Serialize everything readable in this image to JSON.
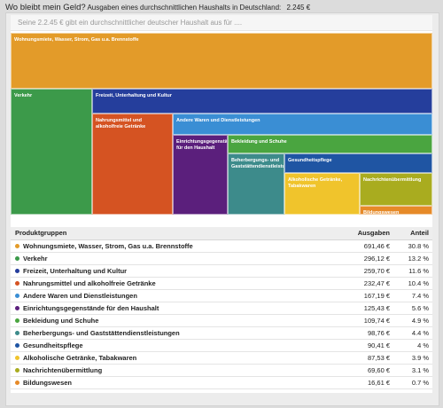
{
  "header": {
    "title": "Wo bleibt mein Geld?",
    "description": "Ausgaben eines durchschnittlichen Haushalts in Deutschland:",
    "total": "2.245 €"
  },
  "subtitle": "Seine 2.2.45 € gibt ein durchschnittlicher deutscher Haushalt aus für ....",
  "table": {
    "col_group": "Produktgruppen",
    "col_amount": "Ausgaben",
    "col_share": "Anteil"
  },
  "chart_data": {
    "type": "treemap",
    "unit": "€",
    "total": 2245,
    "categories": [
      {
        "label": "Wohnungsmiete, Wasser, Strom, Gas u.a. Brennstoffe",
        "tile_label": "Wohnungsmiete, Wasser, Strom, Gas u.a. Brennstoffe",
        "value": 691.46,
        "value_text": "691,46 €",
        "share_text": "30.8 %",
        "color": "#e39b29"
      },
      {
        "label": "Verkehr",
        "tile_label": "Verkehr",
        "value": 296.12,
        "value_text": "296,12 €",
        "share_text": "13.2 %",
        "color": "#3c9a4a"
      },
      {
        "label": "Freizeit, Unterhaltung und Kultur",
        "tile_label": "Freizeit, Unterhaltung und Kultur",
        "value": 259.7,
        "value_text": "259,70 €",
        "share_text": "11.6 %",
        "color": "#253e9c"
      },
      {
        "label": "Nahrungsmittel und alkoholfreie Getränke",
        "tile_label": "Nahrungsmittel und alkoholfreie Getränke",
        "value": 232.47,
        "value_text": "232,47 €",
        "share_text": "10.4 %",
        "color": "#d55322"
      },
      {
        "label": "Andere Waren und Dienstleistungen",
        "tile_label": "Andere Waren und Dienstleistungen",
        "value": 167.19,
        "value_text": "167,19 €",
        "share_text": "7.4 %",
        "color": "#3a8ed4"
      },
      {
        "label": "Einrichtungsgegenstände für den Haushalt",
        "tile_label": "Einrichtungsgegenstände für den Haushalt",
        "value": 125.43,
        "value_text": "125,43 €",
        "share_text": "5.6 %",
        "color": "#5b1f7c"
      },
      {
        "label": "Bekleidung und Schuhe",
        "tile_label": "Bekleidung und Schuhe",
        "value": 109.74,
        "value_text": "109,74 €",
        "share_text": "4.9 %",
        "color": "#4aa540"
      },
      {
        "label": "Beherbergungs- und Gaststättendienstleistungen",
        "tile_label": "Beherbergungs- und Gaststättendienstleistungen",
        "value": 98.76,
        "value_text": "98,76 €",
        "share_text": "4.4 %",
        "color": "#3d8b8b"
      },
      {
        "label": "Gesundheitspflege",
        "tile_label": "Gesundheitspflege",
        "value": 90.41,
        "value_text": "90,41 €",
        "share_text": "4 %",
        "color": "#1f55a3"
      },
      {
        "label": "Alkoholische Getränke, Tabakwaren",
        "tile_label": "Alkoholische Getränke, Tabakwaren",
        "value": 87.53,
        "value_text": "87,53 €",
        "share_text": "3.9 %",
        "color": "#f0c42c"
      },
      {
        "label": "Nachrichtenübermittlung",
        "tile_label": "Nachrichtenübermittlung",
        "value": 69.6,
        "value_text": "69,60 €",
        "share_text": "3.1 %",
        "color": "#a9ac1f"
      },
      {
        "label": "Bildungswesen",
        "tile_label": "Bildungswesen",
        "value": 16.61,
        "value_text": "16,61 €",
        "share_text": "0.7 %",
        "color": "#e68a28"
      }
    ]
  }
}
